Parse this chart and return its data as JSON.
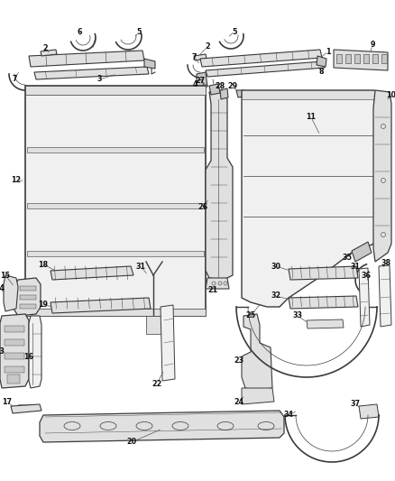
{
  "bg_color": "#ffffff",
  "line_color": "#3a3a3a",
  "fill_light": "#f0f0f0",
  "fill_mid": "#e0e0e0",
  "fill_dark": "#c8c8c8",
  "label_color": "#111111",
  "fig_w": 4.38,
  "fig_h": 5.33,
  "dpi": 100
}
